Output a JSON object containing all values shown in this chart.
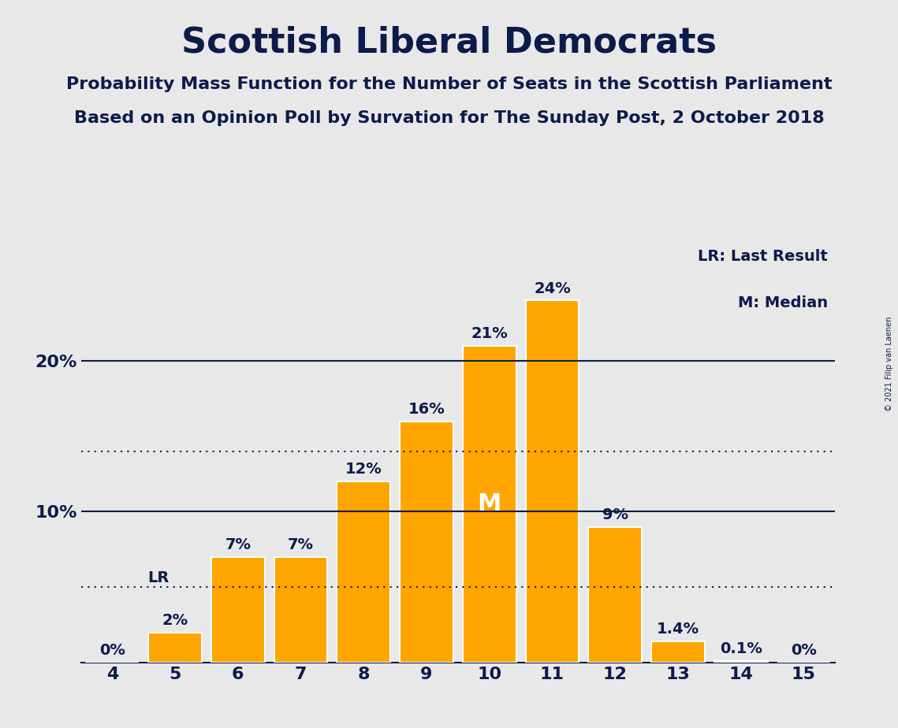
{
  "title": "Scottish Liberal Democrats",
  "subtitle1": "Probability Mass Function for the Number of Seats in the Scottish Parliament",
  "subtitle2": "Based on an Opinion Poll by Survation for The Sunday Post, 2 October 2018",
  "copyright": "© 2021 Filip van Laenen",
  "categories": [
    4,
    5,
    6,
    7,
    8,
    9,
    10,
    11,
    12,
    13,
    14,
    15
  ],
  "values": [
    0.0,
    2.0,
    7.0,
    7.0,
    12.0,
    16.0,
    21.0,
    24.0,
    9.0,
    1.4,
    0.1,
    0.0
  ],
  "labels": [
    "0%",
    "2%",
    "7%",
    "7%",
    "12%",
    "16%",
    "21%",
    "24%",
    "9%",
    "1.4%",
    "0.1%",
    "0%"
  ],
  "bar_color": "#FFA500",
  "background_color": "#E8E8E8",
  "bar_edge_color": "white",
  "text_color": "#0D1B4B",
  "lr_x": 5,
  "lr_y": 5.0,
  "median_x": 10,
  "median_y": 10.5,
  "dotline1_y": 14.0,
  "dotline2_y": 5.0,
  "legend_text1": "LR: Last Result",
  "legend_text2": "M: Median",
  "xlim": [
    3.5,
    15.5
  ],
  "ylim": [
    0,
    28
  ],
  "title_fontsize": 32,
  "subtitle_fontsize": 16,
  "label_fontsize": 14,
  "tick_fontsize": 16
}
